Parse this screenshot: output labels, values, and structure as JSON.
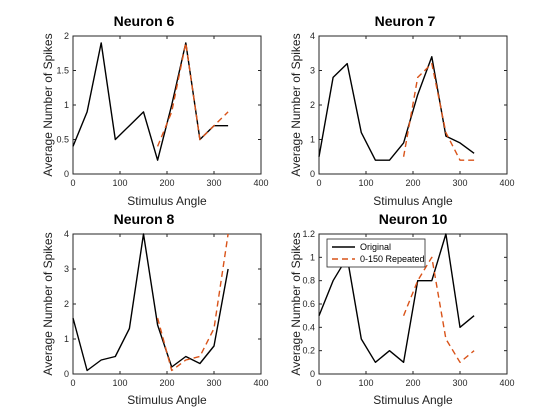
{
  "chart_data": [
    {
      "type": "line",
      "title": "Neuron 6",
      "xlabel": "Stimulus Angle",
      "ylabel": "Average Number of Spikes",
      "xlim": [
        0,
        400
      ],
      "ylim": [
        0,
        2
      ],
      "xticks": [
        "0",
        "100",
        "200",
        "300",
        "400"
      ],
      "yticks": [
        "0",
        "0.5",
        "1",
        "1.5",
        "2"
      ],
      "x": [
        0,
        30,
        60,
        90,
        120,
        150,
        180,
        210,
        240,
        270,
        300,
        330
      ],
      "series": [
        {
          "values": [
            0.4,
            0.9,
            1.9,
            0.5,
            0.7,
            0.9,
            0.2,
            1.0,
            1.9,
            0.5,
            0.7,
            0.7
          ],
          "color": "#000000",
          "style": "solid"
        },
        {
          "x": [
            180,
            210,
            240,
            270,
            300,
            330
          ],
          "values": [
            0.4,
            0.9,
            1.9,
            0.5,
            0.7,
            0.9
          ],
          "color": "#D95319",
          "style": "dashed"
        }
      ],
      "legend": null
    },
    {
      "type": "line",
      "title": "Neuron 7",
      "xlabel": "Stimulus Angle",
      "ylabel": "Average Number of Spikes",
      "xlim": [
        0,
        400
      ],
      "ylim": [
        0,
        4
      ],
      "xticks": [
        "0",
        "100",
        "200",
        "300",
        "400"
      ],
      "yticks": [
        "0",
        "1",
        "2",
        "3",
        "4"
      ],
      "x": [
        0,
        30,
        60,
        90,
        120,
        150,
        180,
        210,
        240,
        270,
        300,
        330
      ],
      "series": [
        {
          "values": [
            0.5,
            2.8,
            3.2,
            1.2,
            0.4,
            0.4,
            0.9,
            2.3,
            3.4,
            1.1,
            0.9,
            0.6
          ],
          "color": "#000000",
          "style": "solid"
        },
        {
          "x": [
            180,
            210,
            240,
            270,
            300,
            330
          ],
          "values": [
            0.5,
            2.8,
            3.2,
            1.2,
            0.4,
            0.4
          ],
          "color": "#D95319",
          "style": "dashed"
        }
      ],
      "legend": null
    },
    {
      "type": "line",
      "title": "Neuron 8",
      "xlabel": "Stimulus Angle",
      "ylabel": "Average Number of Spikes",
      "xlim": [
        0,
        400
      ],
      "ylim": [
        0,
        4
      ],
      "xticks": [
        "0",
        "100",
        "200",
        "300",
        "400"
      ],
      "yticks": [
        "0",
        "1",
        "2",
        "3",
        "4"
      ],
      "x": [
        0,
        30,
        60,
        90,
        120,
        150,
        180,
        210,
        240,
        270,
        300,
        330
      ],
      "series": [
        {
          "values": [
            1.6,
            0.1,
            0.4,
            0.5,
            1.3,
            4.0,
            1.4,
            0.2,
            0.5,
            0.3,
            0.8,
            3.0
          ],
          "color": "#000000",
          "style": "solid"
        },
        {
          "x": [
            180,
            210,
            240,
            270,
            300,
            330
          ],
          "values": [
            1.6,
            0.1,
            0.4,
            0.5,
            1.3,
            4.0
          ],
          "color": "#D95319",
          "style": "dashed"
        }
      ],
      "legend": null
    },
    {
      "type": "line",
      "title": "Neuron 10",
      "xlabel": "Stimulus Angle",
      "ylabel": "Average Number of Spikes",
      "xlim": [
        0,
        400
      ],
      "ylim": [
        0,
        1.2
      ],
      "xticks": [
        "0",
        "100",
        "200",
        "300",
        "400"
      ],
      "yticks": [
        "0",
        "0.2",
        "0.4",
        "0.6",
        "0.8",
        "1",
        "1.2"
      ],
      "x": [
        0,
        30,
        60,
        90,
        120,
        150,
        180,
        210,
        240,
        270,
        300,
        330
      ],
      "series": [
        {
          "name": "Original",
          "values": [
            0.5,
            0.8,
            1.0,
            0.3,
            0.1,
            0.2,
            0.1,
            0.8,
            0.8,
            1.2,
            0.4,
            0.5
          ],
          "color": "#000000",
          "style": "solid"
        },
        {
          "name": "0-150 Repeated",
          "x": [
            180,
            210,
            240,
            270,
            300,
            330
          ],
          "values": [
            0.5,
            0.8,
            1.0,
            0.3,
            0.1,
            0.2
          ],
          "color": "#D95319",
          "style": "dashed"
        }
      ],
      "legend": "top-left"
    }
  ]
}
